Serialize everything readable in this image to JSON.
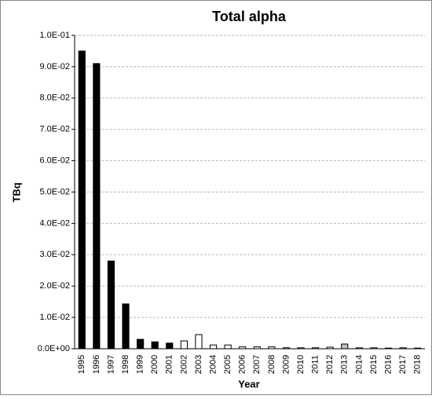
{
  "chart_data": {
    "type": "bar",
    "title": "Total alpha",
    "x_label": "Year",
    "y_label": "TBq",
    "categories": [
      "1995",
      "1996",
      "1997",
      "1998",
      "1999",
      "2000",
      "2001",
      "2002",
      "2003",
      "2004",
      "2005",
      "2006",
      "2007",
      "2008",
      "2009",
      "2010",
      "2011",
      "2012",
      "2013",
      "2014",
      "2015",
      "2016",
      "2017",
      "2018"
    ],
    "values": [
      0.095,
      0.091,
      0.028,
      0.0143,
      0.003,
      0.0022,
      0.0018,
      0.0025,
      0.0045,
      0.0012,
      0.0012,
      0.0006,
      0.0006,
      0.0006,
      0.0003,
      0.0003,
      0.0003,
      0.0005,
      0.0015,
      0.0003,
      0.0003,
      0.0002,
      0.0003,
      0.0002
    ],
    "colors": [
      "#000000",
      "#000000",
      "#000000",
      "#000000",
      "#000000",
      "#000000",
      "#000000",
      "#ffffff",
      "#ffffff",
      "#ffffff",
      "#ffffff",
      "#ffffff",
      "#ffffff",
      "#ffffff",
      "#ffffff",
      "#ffffff",
      "#ffffff",
      "#ffffff",
      "#bfbfbf",
      "#ffffff",
      "#ffffff",
      "#ffffff",
      "#ffffff",
      "#ffffff"
    ],
    "ylim": [
      0,
      0.1
    ],
    "yticks": [
      {
        "value": 0,
        "label": "0.0E+00"
      },
      {
        "value": 0.01,
        "label": "1.0E-02"
      },
      {
        "value": 0.02,
        "label": "2.0E-02"
      },
      {
        "value": 0.03,
        "label": "3.0E-02"
      },
      {
        "value": 0.04,
        "label": "4.0E-02"
      },
      {
        "value": 0.05,
        "label": "5.0E-02"
      },
      {
        "value": 0.06,
        "label": "6.0E-02"
      },
      {
        "value": 0.07,
        "label": "7.0E-02"
      },
      {
        "value": 0.08,
        "label": "8.0E-02"
      },
      {
        "value": 0.09,
        "label": "9.0E-02"
      },
      {
        "value": 0.1,
        "label": "1.0E-01"
      }
    ],
    "grid": true
  }
}
